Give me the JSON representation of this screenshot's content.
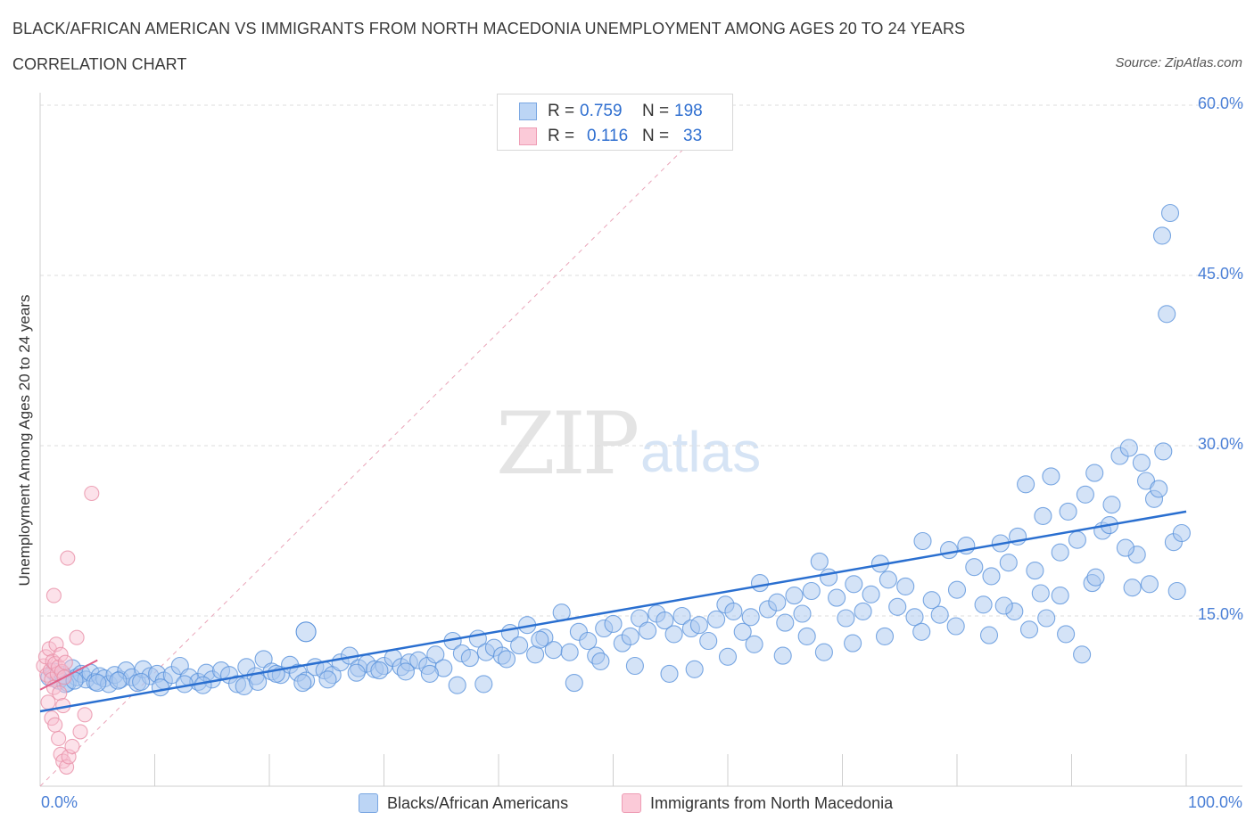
{
  "chart_data": {
    "type": "scatter",
    "title": "BLACK/AFRICAN AMERICAN VS IMMIGRANTS FROM NORTH MACEDONIA UNEMPLOYMENT AMONG AGES 20 TO 24 YEARS",
    "subtitle": "CORRELATION CHART",
    "source": "Source: ZipAtlas.com",
    "watermark": "ZIP",
    "watermark_suffix": "atlas",
    "ylabel": "Unemployment Among Ages 20 to 24 years",
    "xlim": [
      0,
      100
    ],
    "ylim": [
      0,
      60
    ],
    "y_ticks": [
      15,
      30,
      45,
      60
    ],
    "y_tick_labels": [
      "15.0%",
      "30.0%",
      "45.0%",
      "60.0%"
    ],
    "x_tick_labels": [
      "0.0%",
      "100.0%"
    ],
    "grid": true,
    "legend_position": "bottom",
    "stats": [
      {
        "r_label": "R =",
        "r_value": "0.759",
        "n_label": "N =",
        "n_value": "198"
      },
      {
        "r_label": "R =",
        "r_value": "0.116",
        "n_label": "N =",
        "n_value": "33"
      }
    ],
    "series": [
      {
        "name": "Blacks/African Americans",
        "color": "#a9c8f0",
        "edge_color": "#5b93dc",
        "trend_color": "#2a6fd0",
        "trend": {
          "x": [
            0,
            100
          ],
          "y": [
            6.6,
            24.2
          ]
        },
        "points": [
          [
            0.8,
            9.6
          ],
          [
            1.2,
            10.1
          ],
          [
            1.6,
            9.3
          ],
          [
            2.0,
            9.8
          ],
          [
            2.4,
            9.1
          ],
          [
            2.8,
            10.4
          ],
          [
            3.2,
            9.6
          ],
          [
            3.6,
            9.9
          ],
          [
            4.0,
            9.4
          ],
          [
            4.4,
            10.0
          ],
          [
            4.8,
            9.2
          ],
          [
            5.2,
            9.7
          ],
          [
            5.6,
            9.5
          ],
          [
            6.0,
            9.0
          ],
          [
            6.5,
            9.8
          ],
          [
            7.0,
            9.4
          ],
          [
            7.5,
            10.2
          ],
          [
            8.0,
            9.6
          ],
          [
            8.5,
            9.1
          ],
          [
            9.0,
            10.3
          ],
          [
            9.6,
            9.7
          ],
          [
            10.2,
            9.9
          ],
          [
            10.8,
            9.3
          ],
          [
            11.5,
            9.8
          ],
          [
            12.2,
            10.6
          ],
          [
            13.0,
            9.6
          ],
          [
            13.8,
            9.2
          ],
          [
            14.5,
            10.0
          ],
          [
            15.0,
            9.4
          ],
          [
            15.8,
            10.2
          ],
          [
            16.5,
            9.8
          ],
          [
            17.2,
            9.0
          ],
          [
            18.0,
            10.5
          ],
          [
            18.8,
            9.7
          ],
          [
            19.5,
            11.2
          ],
          [
            20.2,
            10.1
          ],
          [
            21.0,
            9.8
          ],
          [
            21.8,
            10.7
          ],
          [
            22.5,
            10.0
          ],
          [
            23.2,
            9.3
          ],
          [
            24.0,
            10.5
          ],
          [
            24.8,
            10.2
          ],
          [
            25.5,
            9.8
          ],
          [
            26.2,
            10.9
          ],
          [
            27.0,
            11.5
          ],
          [
            27.8,
            10.4
          ],
          [
            28.5,
            10.8
          ],
          [
            29.2,
            10.3
          ],
          [
            30.0,
            10.6
          ],
          [
            30.8,
            11.3
          ],
          [
            31.5,
            10.5
          ],
          [
            32.2,
            10.9
          ],
          [
            33.0,
            11.1
          ],
          [
            33.8,
            10.6
          ],
          [
            34.5,
            11.6
          ],
          [
            35.2,
            10.4
          ],
          [
            36.0,
            12.8
          ],
          [
            36.8,
            11.7
          ],
          [
            37.5,
            11.3
          ],
          [
            38.2,
            13.0
          ],
          [
            38.9,
            11.8
          ],
          [
            39.6,
            12.2
          ],
          [
            40.3,
            11.5
          ],
          [
            41.0,
            13.5
          ],
          [
            41.8,
            12.4
          ],
          [
            42.5,
            14.2
          ],
          [
            43.2,
            11.6
          ],
          [
            44.0,
            13.1
          ],
          [
            44.8,
            12.0
          ],
          [
            45.5,
            15.3
          ],
          [
            46.2,
            11.8
          ],
          [
            47.0,
            13.6
          ],
          [
            47.8,
            12.8
          ],
          [
            48.5,
            11.5
          ],
          [
            49.2,
            13.9
          ],
          [
            50.0,
            14.3
          ],
          [
            50.8,
            12.6
          ],
          [
            51.5,
            13.2
          ],
          [
            52.3,
            14.8
          ],
          [
            53.0,
            13.7
          ],
          [
            53.8,
            15.2
          ],
          [
            54.5,
            14.6
          ],
          [
            55.3,
            13.4
          ],
          [
            56.0,
            15.0
          ],
          [
            56.8,
            13.9
          ],
          [
            57.5,
            14.2
          ],
          [
            58.3,
            12.8
          ],
          [
            59.0,
            14.7
          ],
          [
            59.8,
            16.0
          ],
          [
            60.5,
            15.4
          ],
          [
            61.3,
            13.6
          ],
          [
            62.0,
            14.9
          ],
          [
            62.8,
            17.9
          ],
          [
            63.5,
            15.6
          ],
          [
            64.3,
            16.2
          ],
          [
            65.0,
            14.4
          ],
          [
            65.8,
            16.8
          ],
          [
            66.5,
            15.2
          ],
          [
            67.3,
            17.2
          ],
          [
            68.0,
            19.8
          ],
          [
            68.8,
            18.4
          ],
          [
            69.5,
            16.6
          ],
          [
            70.3,
            14.8
          ],
          [
            71.0,
            17.8
          ],
          [
            71.8,
            15.4
          ],
          [
            72.5,
            16.9
          ],
          [
            73.3,
            19.6
          ],
          [
            74.0,
            18.2
          ],
          [
            74.8,
            15.8
          ],
          [
            75.5,
            17.6
          ],
          [
            76.3,
            14.9
          ],
          [
            77.0,
            21.6
          ],
          [
            77.8,
            16.4
          ],
          [
            78.5,
            15.1
          ],
          [
            79.3,
            20.8
          ],
          [
            80.0,
            17.3
          ],
          [
            80.8,
            21.2
          ],
          [
            81.5,
            19.3
          ],
          [
            82.3,
            16.0
          ],
          [
            83.0,
            18.5
          ],
          [
            83.8,
            21.4
          ],
          [
            84.5,
            19.7
          ],
          [
            85.3,
            22.0
          ],
          [
            86.0,
            26.6
          ],
          [
            86.8,
            19.0
          ],
          [
            87.5,
            23.8
          ],
          [
            88.2,
            27.3
          ],
          [
            89.0,
            20.6
          ],
          [
            89.7,
            24.2
          ],
          [
            90.5,
            21.7
          ],
          [
            91.2,
            25.7
          ],
          [
            92.0,
            27.6
          ],
          [
            92.7,
            22.5
          ],
          [
            93.5,
            24.8
          ],
          [
            94.2,
            29.1
          ],
          [
            95.0,
            29.8
          ],
          [
            95.7,
            20.4
          ],
          [
            96.5,
            26.9
          ],
          [
            97.2,
            25.3
          ],
          [
            98.0,
            29.5
          ],
          [
            2.2,
            9.0
          ],
          [
            3.0,
            9.3
          ],
          [
            5.0,
            9.1
          ],
          [
            6.8,
            9.3
          ],
          [
            8.8,
            9.2
          ],
          [
            10.5,
            8.7
          ],
          [
            12.6,
            9.0
          ],
          [
            14.2,
            8.9
          ],
          [
            17.8,
            8.8
          ],
          [
            19.0,
            9.2
          ],
          [
            20.6,
            9.9
          ],
          [
            22.9,
            9.1
          ],
          [
            25.1,
            9.4
          ],
          [
            27.6,
            10.0
          ],
          [
            29.6,
            10.2
          ],
          [
            31.9,
            10.1
          ],
          [
            34.0,
            9.9
          ],
          [
            36.4,
            8.9
          ],
          [
            38.7,
            9.0
          ],
          [
            40.7,
            11.2
          ],
          [
            43.6,
            12.9
          ],
          [
            46.6,
            9.1
          ],
          [
            48.9,
            11.0
          ],
          [
            51.9,
            10.6
          ],
          [
            54.9,
            9.9
          ],
          [
            57.1,
            10.3
          ],
          [
            60.0,
            11.4
          ],
          [
            62.3,
            12.5
          ],
          [
            64.8,
            11.5
          ],
          [
            66.9,
            13.2
          ],
          [
            68.4,
            11.8
          ],
          [
            70.9,
            12.6
          ],
          [
            73.7,
            13.2
          ],
          [
            76.9,
            13.6
          ],
          [
            79.9,
            14.1
          ],
          [
            82.8,
            13.3
          ],
          [
            85.0,
            15.4
          ],
          [
            87.3,
            17.0
          ],
          [
            89.5,
            13.4
          ],
          [
            91.8,
            17.9
          ],
          [
            93.3,
            23.0
          ],
          [
            95.3,
            17.5
          ],
          [
            96.8,
            17.8
          ],
          [
            98.9,
            21.5
          ],
          [
            99.2,
            17.2
          ],
          [
            97.9,
            48.5
          ],
          [
            98.6,
            50.5
          ],
          [
            98.3,
            41.6
          ],
          [
            90.9,
            11.6
          ],
          [
            84.1,
            15.9
          ],
          [
            87.8,
            14.8
          ],
          [
            92.1,
            18.4
          ],
          [
            94.7,
            21.0
          ],
          [
            96.1,
            28.5
          ],
          [
            97.6,
            26.2
          ],
          [
            99.6,
            22.3
          ],
          [
            86.3,
            13.8
          ],
          [
            89.0,
            16.8
          ]
        ]
      },
      {
        "name": "Immigrants from North Macedonia",
        "color": "#f8bfd0",
        "edge_color": "#e890a8",
        "trend_color": "#e0608a",
        "trend": {
          "x": [
            0,
            5
          ],
          "y": [
            8.5,
            11.1
          ]
        },
        "points": [
          [
            0.3,
            10.6
          ],
          [
            0.5,
            11.4
          ],
          [
            0.6,
            9.8
          ],
          [
            0.8,
            12.1
          ],
          [
            0.9,
            10.2
          ],
          [
            1.0,
            9.4
          ],
          [
            1.1,
            11.0
          ],
          [
            1.2,
            8.7
          ],
          [
            1.3,
            10.8
          ],
          [
            1.4,
            12.5
          ],
          [
            1.5,
            9.9
          ],
          [
            1.6,
            10.5
          ],
          [
            1.7,
            8.2
          ],
          [
            1.8,
            11.6
          ],
          [
            1.9,
            10.1
          ],
          [
            2.0,
            7.1
          ],
          [
            2.1,
            9.6
          ],
          [
            2.2,
            10.9
          ],
          [
            0.7,
            7.4
          ],
          [
            1.0,
            6.0
          ],
          [
            1.3,
            5.4
          ],
          [
            1.6,
            4.2
          ],
          [
            1.8,
            2.8
          ],
          [
            2.0,
            2.2
          ],
          [
            2.3,
            1.7
          ],
          [
            2.5,
            2.6
          ],
          [
            2.8,
            3.5
          ],
          [
            3.2,
            13.1
          ],
          [
            3.5,
            4.8
          ],
          [
            3.9,
            6.3
          ],
          [
            2.4,
            20.1
          ],
          [
            4.5,
            25.8
          ],
          [
            1.2,
            16.8
          ]
        ]
      }
    ]
  }
}
